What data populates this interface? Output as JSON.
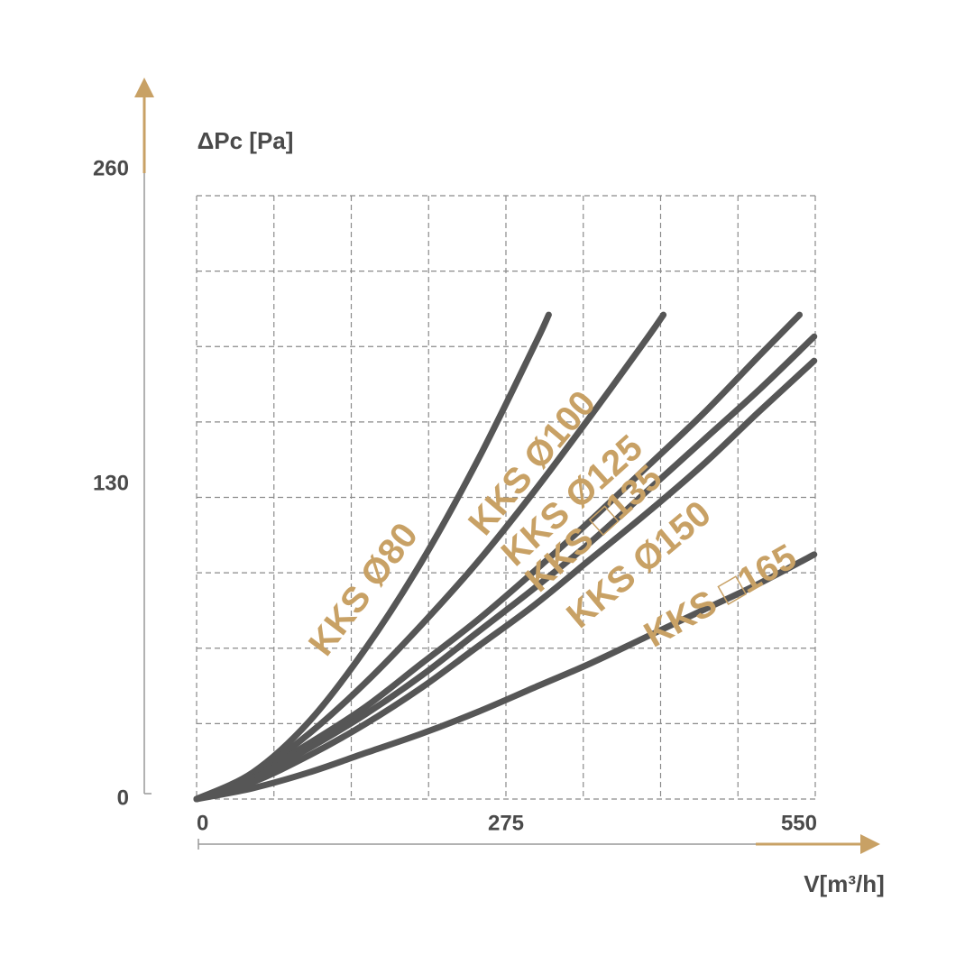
{
  "chart_data": {
    "type": "line",
    "y_label": "ΔPc [Pa]",
    "x_label": "V[m³/h]",
    "xlim": [
      0,
      550
    ],
    "ylim": [
      0,
      260
    ],
    "xticks": [
      0,
      275,
      550
    ],
    "yticks": [
      0,
      130,
      260
    ],
    "label_color": "#c8a165",
    "axis_arrow_color": "#c8a165",
    "series": [
      {
        "name": "KKS Ø80",
        "color": "#565656",
        "x": [
          0,
          50,
          100,
          150,
          200,
          250,
          300,
          313
        ],
        "values": [
          0,
          11,
          32,
          62,
          98,
          140,
          187,
          200
        ]
      },
      {
        "name": "KKS Ø100",
        "color": "#565656",
        "x": [
          0,
          50,
          100,
          150,
          200,
          250,
          300,
          350,
          400,
          415
        ],
        "values": [
          0,
          10,
          27,
          48,
          72,
          98,
          127,
          158,
          190,
          200
        ]
      },
      {
        "name": "KKS Ø125",
        "color": "#565656",
        "x": [
          0,
          50,
          100,
          150,
          200,
          250,
          300,
          350,
          400,
          450,
          500,
          536
        ],
        "values": [
          0,
          9,
          23,
          38,
          56,
          74,
          94,
          115,
          137,
          159,
          183,
          200
        ]
      },
      {
        "name": "KKS □135",
        "color": "#565656",
        "x": [
          0,
          50,
          100,
          150,
          200,
          250,
          300,
          350,
          400,
          450,
          500,
          549
        ],
        "values": [
          0,
          8.5,
          21,
          35,
          51,
          69,
          87,
          106,
          127,
          148,
          169,
          191
        ]
      },
      {
        "name": "KKS Ø150",
        "color": "#565656",
        "x": [
          0,
          50,
          100,
          150,
          200,
          250,
          300,
          350,
          400,
          450,
          500,
          549
        ],
        "values": [
          0,
          7,
          18,
          31,
          46,
          63,
          80,
          99,
          118,
          138,
          160,
          181
        ]
      },
      {
        "name": "KKS □165",
        "color": "#565656",
        "x": [
          0,
          50,
          100,
          150,
          200,
          250,
          300,
          350,
          400,
          450,
          500,
          549
        ],
        "values": [
          0,
          4.5,
          11,
          19,
          27,
          36,
          46,
          56,
          67,
          78,
          89,
          101
        ]
      }
    ]
  }
}
